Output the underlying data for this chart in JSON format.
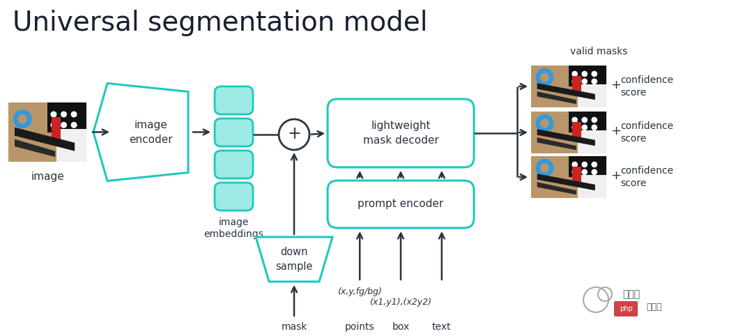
{
  "title": "Universal segmentation model",
  "bg_color": "#ffffff",
  "teal_stroke": "#1ec8c0",
  "teal_fill": "#9eeae4",
  "dark": "#2a3340",
  "valid_masks_text": "valid masks",
  "confidence_text": "confidence\nscore",
  "image_label": "image",
  "image_encoder_label": "image\nencoder",
  "image_embeddings_label": "image\nembeddings",
  "mask_decoder_label": "lightweight\nmask decoder",
  "prompt_encoder_label": "prompt encoder",
  "down_sample_label": "down\nsample",
  "mask_label": "mask",
  "points_label": "points",
  "box_label": "box",
  "text_label": "text",
  "points_annot": "(x,y,fg/bg)",
  "box_annot": "(x1,y1),(x2y2)",
  "fig_w": 10.56,
  "fig_h": 4.82,
  "dpi": 100
}
